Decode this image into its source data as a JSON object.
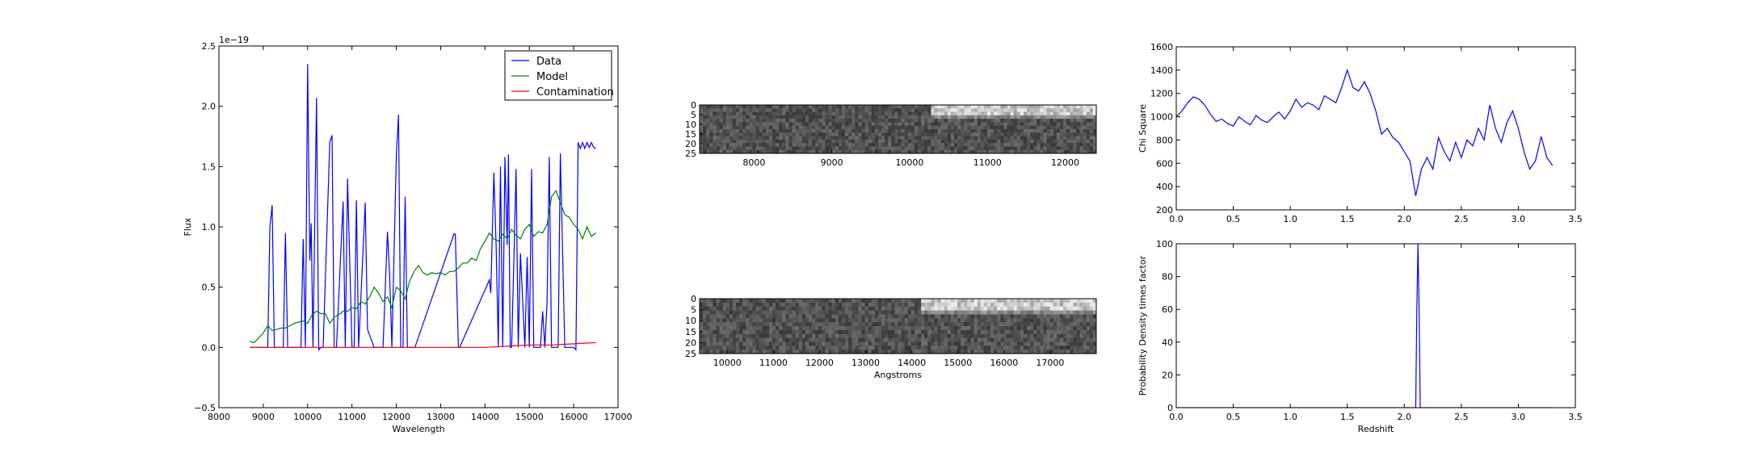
{
  "chart_data": [
    {
      "type": "line",
      "xlabel": "Wavelength",
      "ylabel": "Flux",
      "offset_label": "1e−19",
      "xlim": [
        8000,
        17000
      ],
      "ylim": [
        -0.5,
        2.5
      ],
      "xticks": [
        8000,
        9000,
        10000,
        11000,
        12000,
        13000,
        14000,
        15000,
        16000,
        17000
      ],
      "yticks": [
        -0.5,
        0.0,
        0.5,
        1.0,
        1.5,
        2.0,
        2.5
      ],
      "legend": {
        "position": "upper right",
        "entries": [
          "Data",
          "Model",
          "Contamination"
        ]
      },
      "series": [
        {
          "name": "Data",
          "color": "#0000ff",
          "x": [
            8700,
            9100,
            9150,
            9200,
            9250,
            9450,
            9500,
            9550,
            9850,
            9900,
            9950,
            10000,
            10050,
            10080,
            10120,
            10200,
            10250,
            10300,
            10350,
            10500,
            10550,
            10600,
            10650,
            10800,
            10850,
            10900,
            11000,
            11050,
            11100,
            11150,
            11300,
            11350,
            11500,
            11550,
            11700,
            11800,
            11850,
            11900,
            12000,
            12050,
            12100,
            12150,
            12200,
            12250,
            12300,
            12350,
            12380,
            12420,
            13300,
            13330,
            13400,
            13430,
            14100,
            14130,
            14200,
            14250,
            14300,
            14350,
            14400,
            14450,
            14500,
            14530,
            14570,
            14600,
            14650,
            14700,
            14750,
            14800,
            14900,
            14950,
            15000,
            15050,
            15100,
            15150,
            15200,
            15250,
            15300,
            15350,
            15400,
            15450,
            15500,
            15550,
            15600,
            15650,
            15700,
            15800,
            15850,
            15900,
            15950,
            16000,
            16050,
            16100,
            16150,
            16200,
            16250,
            16300,
            16350,
            16400,
            16450,
            16500
          ],
          "y": [
            0.0,
            0.0,
            1.0,
            1.18,
            0.0,
            0.0,
            0.95,
            0.0,
            0.0,
            0.9,
            0.0,
            2.35,
            0.72,
            1.03,
            0.0,
            2.07,
            -0.02,
            0.0,
            0.0,
            1.7,
            1.76,
            0.0,
            0.0,
            1.21,
            0.0,
            1.4,
            0.0,
            0.0,
            1.22,
            0.0,
            1.2,
            0.15,
            0.0,
            0.0,
            0.0,
            0.96,
            0.6,
            0.0,
            1.6,
            1.93,
            0.0,
            0.0,
            1.25,
            0.0,
            0.0,
            0.0,
            0.0,
            0.0,
            0.94,
            0.94,
            0.0,
            0.0,
            0.56,
            0.45,
            1.45,
            0.85,
            0.0,
            1.5,
            0.0,
            1.58,
            0.85,
            1.6,
            0.0,
            0.0,
            0.7,
            1.48,
            0.0,
            0.78,
            0.0,
            0.75,
            0.0,
            1.48,
            0.0,
            0.0,
            0.0,
            0.0,
            0.3,
            0.0,
            0.38,
            1.58,
            0.0,
            0.0,
            0.0,
            0.0,
            1.61,
            0.0,
            0.0,
            0.0,
            0.0,
            0.0,
            -0.02,
            1.7,
            1.65,
            1.7,
            1.65,
            1.7,
            1.66,
            1.7,
            1.66,
            1.65
          ]
        },
        {
          "name": "Model",
          "color": "#008000",
          "x": [
            8700,
            8800,
            8900,
            9000,
            9100,
            9200,
            9300,
            9400,
            9500,
            9600,
            9700,
            9800,
            9900,
            10000,
            10100,
            10200,
            10300,
            10400,
            10500,
            10600,
            10700,
            10800,
            10900,
            11000,
            11100,
            11200,
            11300,
            11400,
            11500,
            11600,
            11700,
            11800,
            11900,
            12000,
            12100,
            12200,
            12300,
            12400,
            12500,
            12600,
            12700,
            12800,
            12900,
            13000,
            13100,
            13200,
            13300,
            13400,
            13500,
            13600,
            13700,
            13800,
            13900,
            14000,
            14100,
            14200,
            14300,
            14400,
            14500,
            14600,
            14700,
            14800,
            14900,
            15000,
            15100,
            15200,
            15300,
            15400,
            15500,
            15600,
            15700,
            15800,
            15900,
            16000,
            16100,
            16200,
            16300,
            16400,
            16500
          ],
          "y": [
            0.05,
            0.04,
            0.08,
            0.12,
            0.18,
            0.14,
            0.15,
            0.16,
            0.16,
            0.18,
            0.2,
            0.21,
            0.22,
            0.2,
            0.27,
            0.3,
            0.28,
            0.28,
            0.2,
            0.25,
            0.27,
            0.3,
            0.3,
            0.33,
            0.32,
            0.38,
            0.36,
            0.42,
            0.5,
            0.45,
            0.38,
            0.42,
            0.33,
            0.5,
            0.47,
            0.4,
            0.55,
            0.63,
            0.68,
            0.62,
            0.6,
            0.62,
            0.61,
            0.62,
            0.6,
            0.63,
            0.63,
            0.66,
            0.7,
            0.7,
            0.74,
            0.72,
            0.82,
            0.88,
            0.95,
            0.9,
            0.88,
            0.94,
            0.9,
            0.98,
            0.93,
            0.9,
            0.98,
            1.02,
            0.92,
            0.96,
            0.95,
            1.02,
            1.25,
            1.3,
            1.2,
            1.1,
            1.08,
            1.02,
            0.98,
            0.9,
            1.0,
            0.92,
            0.95
          ]
        },
        {
          "name": "Contamination",
          "color": "#ff0000",
          "x": [
            8700,
            9500,
            10500,
            11500,
            12500,
            13500,
            14000,
            14500,
            15000,
            15500,
            16000,
            16500
          ],
          "y": [
            0.0,
            0.0,
            0.0,
            0.0,
            0.0,
            0.0,
            0.0,
            0.01,
            0.02,
            0.02,
            0.03,
            0.04
          ]
        }
      ]
    },
    {
      "type": "heatmap",
      "xlim": [
        7300,
        12400
      ],
      "xticks": [
        8000,
        9000,
        10000,
        11000,
        12000
      ],
      "yticks": [
        0,
        5,
        10,
        15,
        20,
        25
      ],
      "ylim": [
        0,
        25
      ]
    },
    {
      "type": "heatmap",
      "xlabel": "Angstroms",
      "xlim": [
        9400,
        18000
      ],
      "xticks": [
        10000,
        11000,
        12000,
        13000,
        14000,
        15000,
        16000,
        17000
      ],
      "yticks": [
        0,
        5,
        10,
        15,
        20,
        25
      ],
      "ylim": [
        0,
        25
      ]
    },
    {
      "type": "line",
      "ylabel": "Chi Square",
      "xlim": [
        0.0,
        3.5
      ],
      "ylim": [
        200,
        1600
      ],
      "xticks": [
        0.0,
        0.5,
        1.0,
        1.5,
        2.0,
        2.5,
        3.0,
        3.5
      ],
      "yticks": [
        200,
        400,
        600,
        800,
        1000,
        1200,
        1400,
        1600
      ],
      "series": [
        {
          "color": "#0000ff",
          "x": [
            0.0,
            0.05,
            0.1,
            0.15,
            0.2,
            0.25,
            0.3,
            0.35,
            0.4,
            0.45,
            0.5,
            0.55,
            0.6,
            0.65,
            0.7,
            0.75,
            0.8,
            0.85,
            0.9,
            0.95,
            1.0,
            1.05,
            1.1,
            1.15,
            1.2,
            1.25,
            1.3,
            1.35,
            1.4,
            1.45,
            1.5,
            1.55,
            1.6,
            1.65,
            1.7,
            1.75,
            1.8,
            1.85,
            1.9,
            1.95,
            2.0,
            2.05,
            2.1,
            2.15,
            2.2,
            2.25,
            2.3,
            2.35,
            2.4,
            2.45,
            2.5,
            2.55,
            2.6,
            2.65,
            2.7,
            2.75,
            2.8,
            2.85,
            2.9,
            2.95,
            3.0,
            3.05,
            3.1,
            3.15,
            3.2,
            3.25,
            3.3
          ],
          "y": [
            1000,
            1050,
            1120,
            1170,
            1150,
            1100,
            1020,
            960,
            980,
            940,
            920,
            1000,
            960,
            930,
            1010,
            970,
            950,
            1000,
            1040,
            980,
            1050,
            1150,
            1080,
            1120,
            1100,
            1060,
            1180,
            1150,
            1120,
            1250,
            1400,
            1250,
            1220,
            1300,
            1200,
            1050,
            850,
            900,
            820,
            780,
            700,
            620,
            320,
            550,
            650,
            550,
            820,
            700,
            620,
            780,
            650,
            800,
            750,
            900,
            800,
            1100,
            900,
            780,
            950,
            1050,
            900,
            700,
            550,
            620,
            830,
            650,
            580
          ]
        }
      ]
    },
    {
      "type": "line",
      "xlabel": "Redshift",
      "ylabel": "Probability Density times factor",
      "xlim": [
        0.0,
        3.5
      ],
      "ylim": [
        0,
        100
      ],
      "xticks": [
        0.0,
        0.5,
        1.0,
        1.5,
        2.0,
        2.5,
        3.0,
        3.5
      ],
      "yticks": [
        0,
        20,
        40,
        60,
        80,
        100
      ],
      "series": [
        {
          "color": "#0000ff",
          "x": [
            0.0,
            2.08,
            2.1,
            2.11,
            2.12,
            2.13,
            2.14,
            2.16,
            3.3
          ],
          "y": [
            0,
            0,
            0,
            60,
            100,
            60,
            0,
            0,
            0
          ]
        }
      ]
    }
  ]
}
